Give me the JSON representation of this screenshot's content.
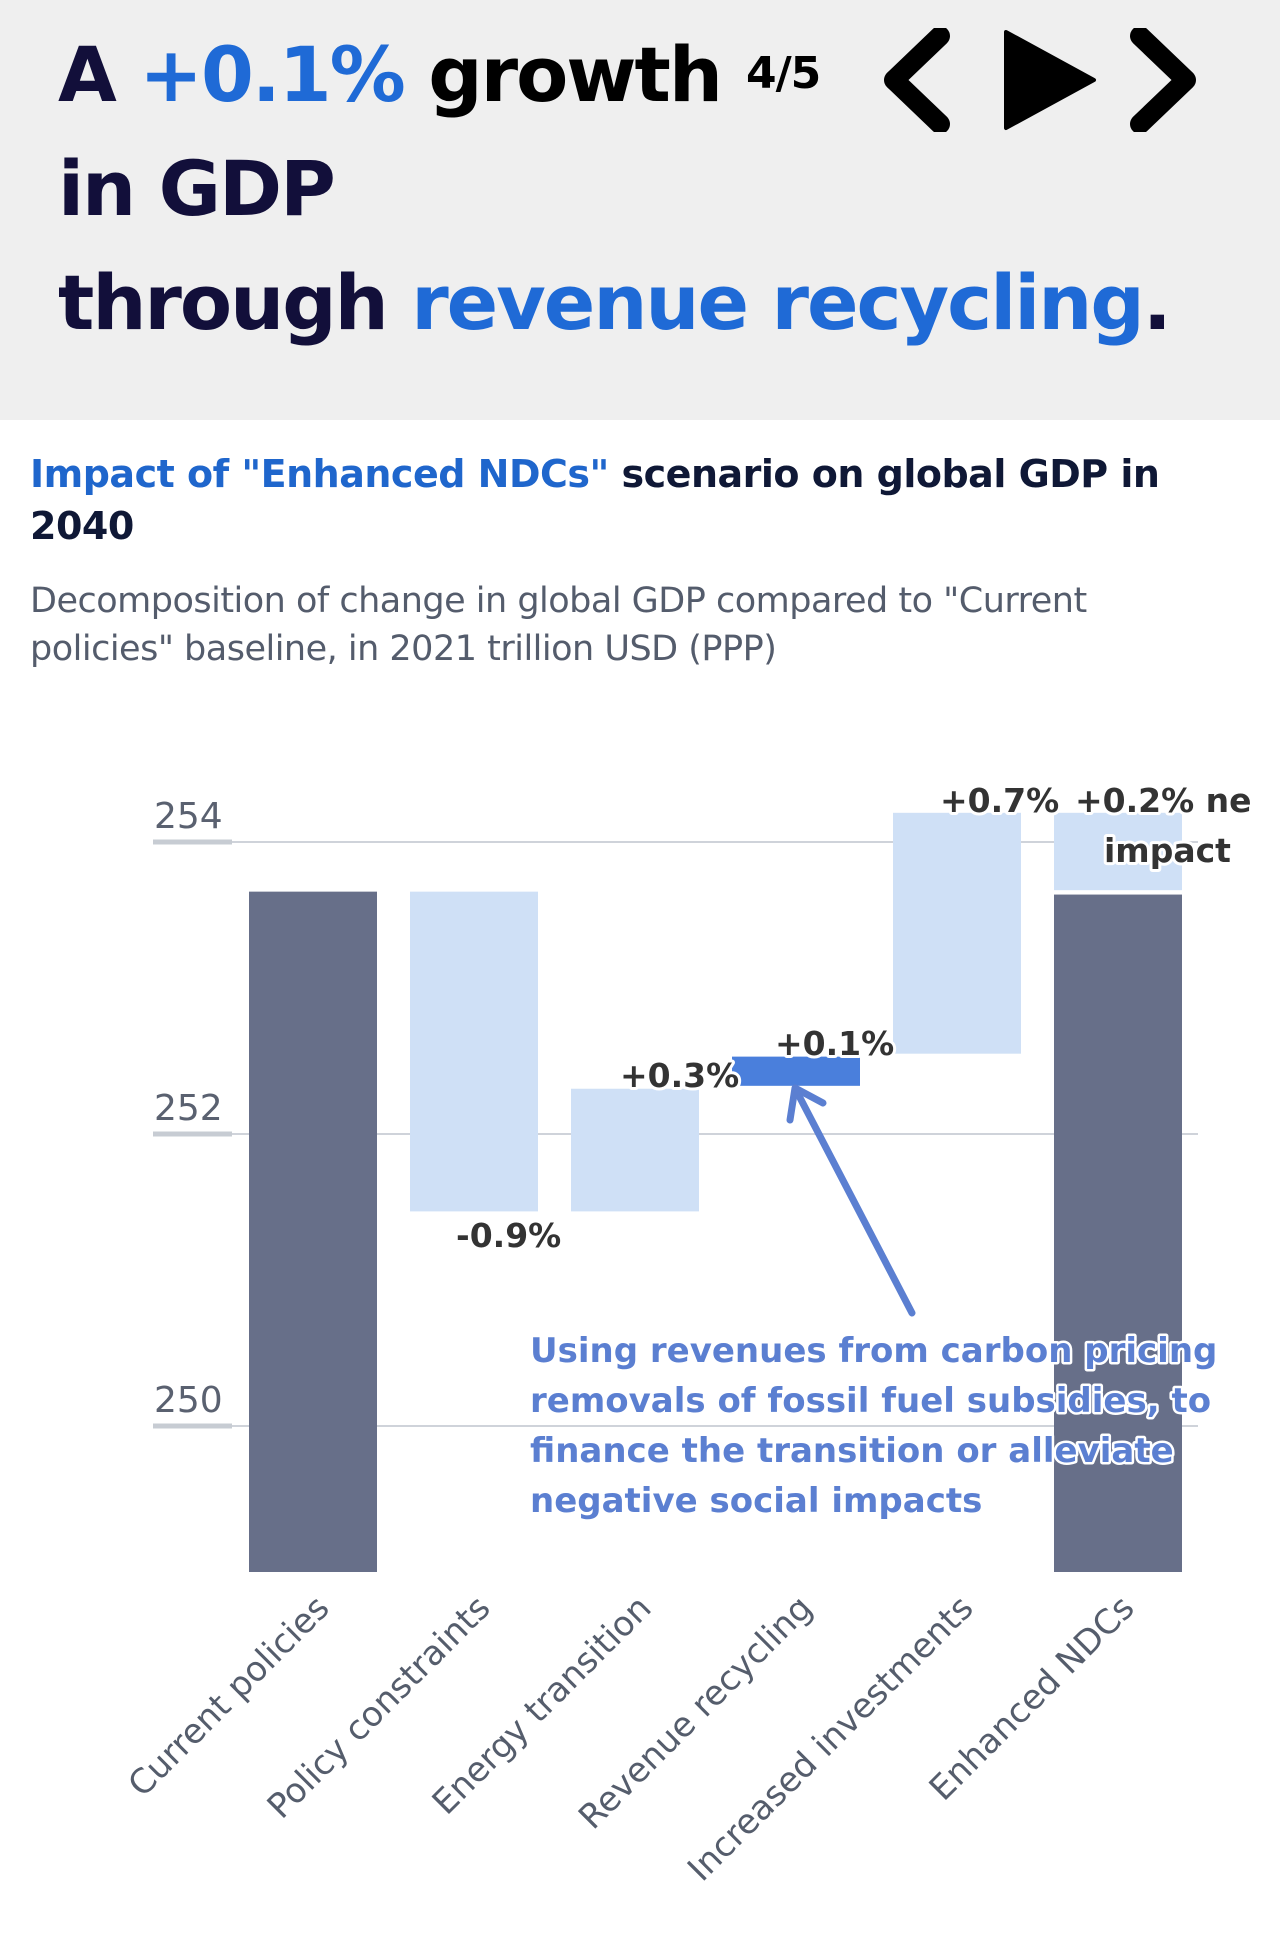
{
  "header": {
    "headline": {
      "line1_prefix": "A ",
      "line1_highlight": "+0.1%",
      "line1_suffix": " growth",
      "line2": "in GDP",
      "line3_prefix": "through ",
      "line3_highlight": "revenue recycling",
      "line3_suffix": "."
    },
    "page_counter": "4/5",
    "nav": {
      "prev_icon": "chevron-left-icon",
      "play_icon": "play-icon",
      "next_icon": "chevron-right-icon"
    }
  },
  "colors": {
    "highlight_blue": "#1f6ad6",
    "total_bar": "#676f89",
    "delta_bar": "#cfe0f6",
    "focus_bar": "#4a7fdc",
    "annotation": "#5b7fd1"
  },
  "chart_data": {
    "type": "bar",
    "subtype": "waterfall",
    "title_highlight": "Impact of \"Enhanced NDCs\"",
    "title_rest": " scenario on global GDP in 2040",
    "subtitle": "Decomposition of change in global GDP compared to \"Current policies\" baseline, in 2021 trillion USD (PPP)",
    "xlabel": "",
    "ylabel": "",
    "ylim": [
      249,
      254.2
    ],
    "yticks": [
      {
        "value": 250,
        "label": "250"
      },
      {
        "value": 252,
        "label": "252"
      },
      {
        "value": 254,
        "label": "254"
      }
    ],
    "grid": true,
    "categories": [
      "Current policies",
      "Policy constraints",
      "Energy transition",
      "Revenue recycling",
      "Increased investments",
      "Enhanced NDCs"
    ],
    "bars": [
      {
        "category": "Current policies",
        "kind": "total",
        "start": 249,
        "end": 253.66,
        "label": ""
      },
      {
        "category": "Policy constraints",
        "kind": "delta",
        "start": 253.66,
        "end": 251.47,
        "label": "-0.9%"
      },
      {
        "category": "Energy transition",
        "kind": "delta",
        "start": 251.47,
        "end": 252.31,
        "label": "+0.3%"
      },
      {
        "category": "Revenue recycling",
        "kind": "focus",
        "start": 252.33,
        "end": 252.53,
        "label": "+0.1%"
      },
      {
        "category": "Increased investments",
        "kind": "delta",
        "start": 252.55,
        "end": 254.2,
        "label": "+0.7%"
      },
      {
        "category": "Enhanced NDCs",
        "kind": "total",
        "start": 249,
        "end": 253.64,
        "label": ""
      },
      {
        "category": "Enhanced NDCs",
        "kind": "net",
        "start": 253.67,
        "end": 254.2,
        "label": "+0.2% ne\nimpact"
      }
    ],
    "annotation": {
      "target": "Revenue recycling",
      "lines": [
        "Using revenues from carbon pricing",
        "removals of fossil fuel subsidies, to",
        "finance the transition or alleviate",
        "negative social impacts"
      ]
    }
  }
}
